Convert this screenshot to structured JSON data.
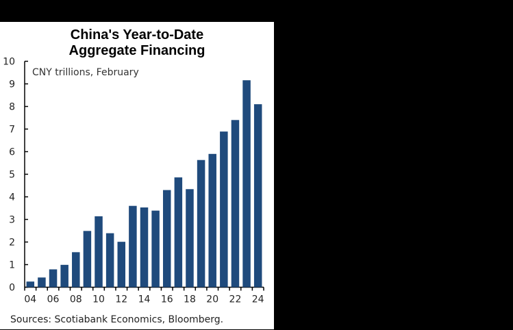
{
  "chart_data": {
    "type": "bar",
    "title": "China's Year-to-Date Aggregate Financing",
    "title_lines": [
      "China's Year-to-Date",
      "Aggregate Financing"
    ],
    "subtitle": "CNY trillions, February",
    "xlabel": "",
    "ylabel": "CNY trillions",
    "categories": [
      "04",
      "05",
      "06",
      "07",
      "08",
      "09",
      "10",
      "11",
      "12",
      "13",
      "14",
      "15",
      "16",
      "17",
      "18",
      "19",
      "20",
      "21",
      "22",
      "23",
      "24"
    ],
    "x_tick_labels": [
      "04",
      "06",
      "08",
      "10",
      "12",
      "14",
      "16",
      "18",
      "20",
      "22",
      "24"
    ],
    "values": [
      0.25,
      0.43,
      0.79,
      0.99,
      1.55,
      2.49,
      3.14,
      2.39,
      2.01,
      3.6,
      3.53,
      3.39,
      4.3,
      4.86,
      4.34,
      5.63,
      5.9,
      6.89,
      7.4,
      9.16,
      8.1
    ],
    "ylim": [
      0,
      10
    ],
    "y_ticks": [
      0,
      1,
      2,
      3,
      4,
      5,
      6,
      7,
      8,
      9,
      10
    ],
    "grid": false,
    "legend": null,
    "bar_color": "#1f4a7c",
    "source": "Sources: Scotiabank Economics, Bloomberg."
  }
}
